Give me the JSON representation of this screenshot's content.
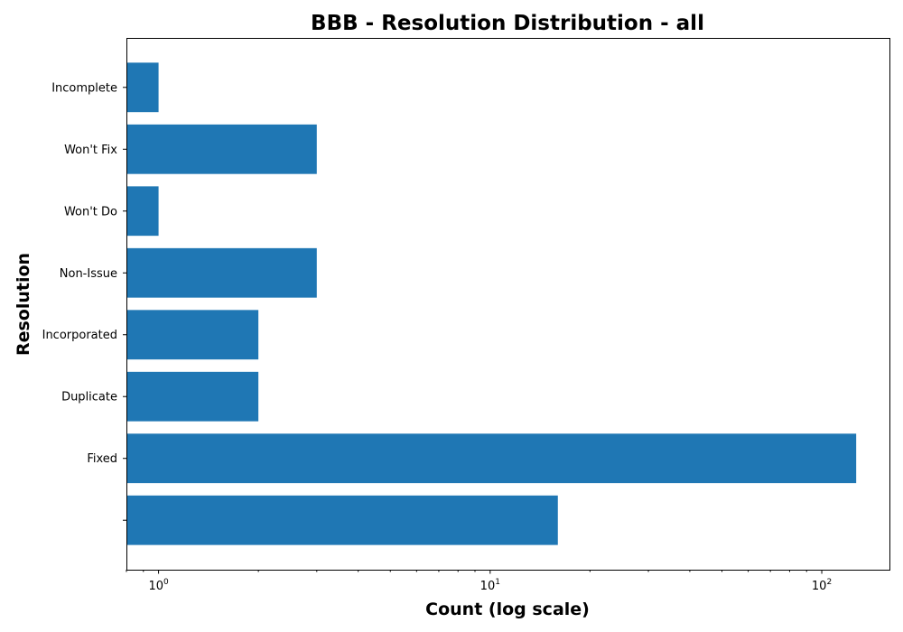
{
  "chart_data": {
    "type": "bar",
    "orientation": "horizontal",
    "title": "BBB - Resolution Distribution - all",
    "xlabel": "Count (log scale)",
    "ylabel": "Resolution",
    "xscale": "log",
    "xlim": [
      0.8,
      160
    ],
    "grid": false,
    "bar_color": "#1f77b4",
    "categories": [
      "",
      "Fixed",
      "Duplicate",
      "Incorporated",
      "Non-Issue",
      "Won't Do",
      "Won't Fix",
      "Incomplete"
    ],
    "values": [
      16,
      127,
      2,
      2,
      3,
      1,
      3,
      1
    ],
    "x_ticks": [
      {
        "value": 1,
        "base": "10",
        "exp": "0"
      },
      {
        "value": 10,
        "base": "10",
        "exp": "1"
      },
      {
        "value": 100,
        "base": "10",
        "exp": "2"
      }
    ]
  }
}
